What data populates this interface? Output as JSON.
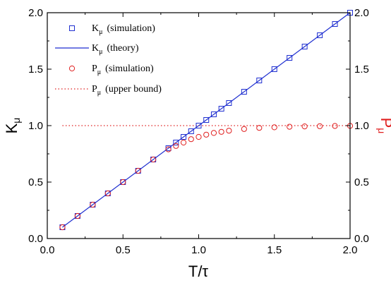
{
  "chart_data": {
    "type": "scatter",
    "xlabel": "T/τ",
    "ylabel_left": "K",
    "ylabel_left_sub": "μ",
    "ylabel_right": "P",
    "ylabel_right_sub": "μ",
    "xlim": [
      0.0,
      2.0
    ],
    "ylim": [
      0.0,
      2.0
    ],
    "x_ticks": [
      "0.0",
      "0.5",
      "1.0",
      "1.5",
      "2.0"
    ],
    "y_ticks": [
      "0.0",
      "0.5",
      "1.0",
      "1.5",
      "2.0"
    ],
    "grid": false,
    "legend_position": "top-left",
    "colors": {
      "blue": "#1f2fd0",
      "red": "#e02020"
    },
    "series": [
      {
        "name": "K",
        "name_sub": "μ",
        "name_suffix": "(simulation)",
        "style": "open-square",
        "color": "blue",
        "x": [
          0.1,
          0.2,
          0.3,
          0.4,
          0.5,
          0.6,
          0.7,
          0.8,
          0.85,
          0.9,
          0.95,
          1.0,
          1.05,
          1.1,
          1.15,
          1.2,
          1.3,
          1.4,
          1.5,
          1.6,
          1.7,
          1.8,
          1.9,
          2.0
        ],
        "y": [
          0.1,
          0.2,
          0.3,
          0.4,
          0.5,
          0.6,
          0.7,
          0.8,
          0.85,
          0.9,
          0.95,
          1.0,
          1.05,
          1.1,
          1.15,
          1.2,
          1.3,
          1.4,
          1.5,
          1.6,
          1.7,
          1.8,
          1.9,
          2.0
        ]
      },
      {
        "name": "K",
        "name_sub": "μ",
        "name_suffix": "(theory)",
        "style": "solid-line",
        "color": "blue",
        "x": [
          0.1,
          2.0
        ],
        "y": [
          0.1,
          2.0
        ]
      },
      {
        "name": "P",
        "name_sub": "μ",
        "name_suffix": "(simulation)",
        "style": "open-circle",
        "color": "red",
        "x": [
          0.1,
          0.2,
          0.3,
          0.4,
          0.5,
          0.6,
          0.7,
          0.8,
          0.85,
          0.9,
          0.95,
          1.0,
          1.05,
          1.1,
          1.15,
          1.2,
          1.3,
          1.4,
          1.5,
          1.6,
          1.7,
          1.8,
          1.9,
          2.0
        ],
        "y": [
          0.1,
          0.2,
          0.3,
          0.4,
          0.5,
          0.6,
          0.7,
          0.79,
          0.82,
          0.85,
          0.88,
          0.9,
          0.92,
          0.935,
          0.945,
          0.955,
          0.97,
          0.98,
          0.985,
          0.99,
          0.993,
          0.995,
          0.997,
          0.998
        ]
      },
      {
        "name": "P",
        "name_sub": "μ",
        "name_suffix": "(upper bound)",
        "style": "dotted-line",
        "color": "red",
        "x": [
          0.1,
          2.0
        ],
        "y": [
          1.0,
          1.0
        ]
      }
    ]
  }
}
